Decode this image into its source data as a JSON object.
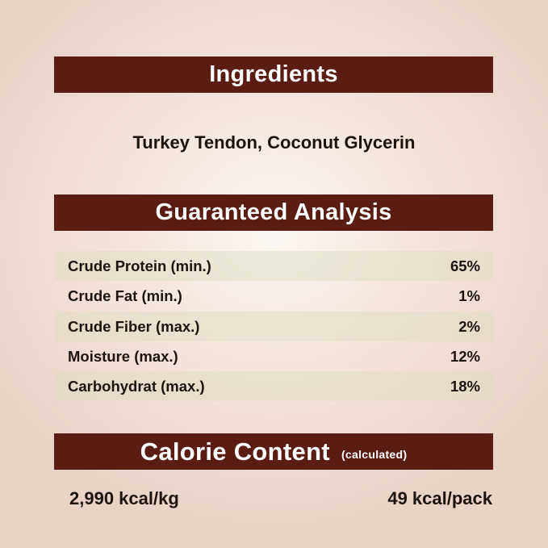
{
  "ingredients": {
    "title": "Ingredients",
    "text": "Turkey Tendon, Coconut Glycerin"
  },
  "analysis": {
    "title": "Guaranteed Analysis",
    "rows": [
      {
        "label": "Crude Protein (min.)",
        "value": "65%"
      },
      {
        "label": "Crude Fat (min.)",
        "value": "1%"
      },
      {
        "label": "Crude Fiber (max.)",
        "value": "2%"
      },
      {
        "label": "Moisture (max.)",
        "value": "12%"
      },
      {
        "label": "Carbohydrat (max.)",
        "value": "18%"
      }
    ]
  },
  "calorie": {
    "title": "Calorie Content",
    "subtitle": "(calculated)",
    "per_kg": "2,990 kcal/kg",
    "per_pack": "49 kcal/pack"
  },
  "colors": {
    "header_bar": "#5a1d12",
    "row_shade": "#e6e4c8"
  }
}
